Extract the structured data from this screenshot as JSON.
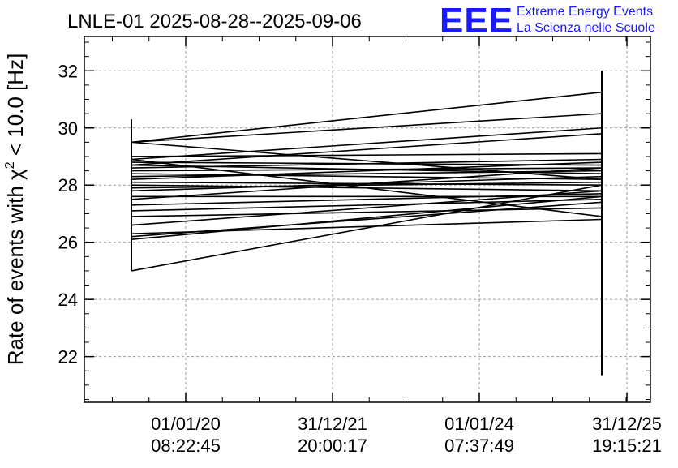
{
  "chart_data": {
    "type": "line",
    "title": "LNLE-01 2025-08-28--2025-09-06",
    "logo": {
      "text": "EEE",
      "line1": "Extreme Energy Events",
      "line2": "La Scienza nelle Scuole",
      "color": "#1a1aff"
    },
    "ylabel": {
      "prefix": "Rate of events with ",
      "chi": "χ",
      "sup": "2",
      "suffix": " < 10.0 [Hz]"
    },
    "xlabel": "",
    "ylim": [
      20.4,
      33.2
    ],
    "y_ticks": [
      22,
      24,
      26,
      28,
      30,
      32
    ],
    "y_tick_labels": [
      "22",
      "24",
      "26",
      "28",
      "30",
      "32"
    ],
    "x_ticks": [
      {
        "date": "01/01/20",
        "time": "08:22:45"
      },
      {
        "date": "31/12/21",
        "time": "20:00:17"
      },
      {
        "date": "01/01/24",
        "time": "07:37:49"
      },
      {
        "date": "31/12/25",
        "time": "19:15:21"
      }
    ],
    "grid": true,
    "legend": "none",
    "x_event_positions": [
      "start_of_series",
      "end_of_series"
    ],
    "series": [
      {
        "values": [
          29.5,
          31.25
        ]
      },
      {
        "values": [
          29.5,
          30.5
        ]
      },
      {
        "values": [
          28.9,
          30.0
        ]
      },
      {
        "values": [
          28.7,
          29.8
        ]
      },
      {
        "values": [
          29.0,
          29.1
        ]
      },
      {
        "values": [
          28.8,
          28.7
        ]
      },
      {
        "values": [
          28.7,
          28.4
        ]
      },
      {
        "values": [
          28.6,
          28.9
        ]
      },
      {
        "values": [
          28.5,
          28.6
        ]
      },
      {
        "values": [
          28.4,
          28.2
        ]
      },
      {
        "values": [
          28.3,
          28.5
        ]
      },
      {
        "values": [
          28.2,
          28.8
        ]
      },
      {
        "values": [
          28.1,
          28.0
        ]
      },
      {
        "values": [
          28.0,
          27.8
        ]
      },
      {
        "values": [
          27.9,
          28.1
        ]
      },
      {
        "values": [
          27.8,
          28.3
        ]
      },
      {
        "values": [
          27.6,
          27.6
        ]
      },
      {
        "values": [
          27.5,
          28.6
        ]
      },
      {
        "values": [
          27.3,
          27.7
        ]
      },
      {
        "values": [
          27.1,
          27.5
        ]
      },
      {
        "values": [
          26.9,
          27.2
        ]
      },
      {
        "values": [
          26.6,
          27.8
        ]
      },
      {
        "values": [
          26.3,
          26.8
        ]
      },
      {
        "values": [
          26.2,
          27.4
        ]
      },
      {
        "values": [
          26.1,
          27.6
        ]
      },
      {
        "values": [
          25.0,
          28.0
        ]
      },
      {
        "values": [
          28.9,
          26.9
        ]
      },
      {
        "values": [
          29.5,
          28.2
        ]
      }
    ],
    "spikes": [
      {
        "at": "start",
        "min": 25.0,
        "max": 30.3
      },
      {
        "at": "end",
        "min": 21.35,
        "max": 32.0
      }
    ],
    "colors": {
      "line": "#000000",
      "grid": "#999999",
      "axis": "#000000"
    }
  }
}
